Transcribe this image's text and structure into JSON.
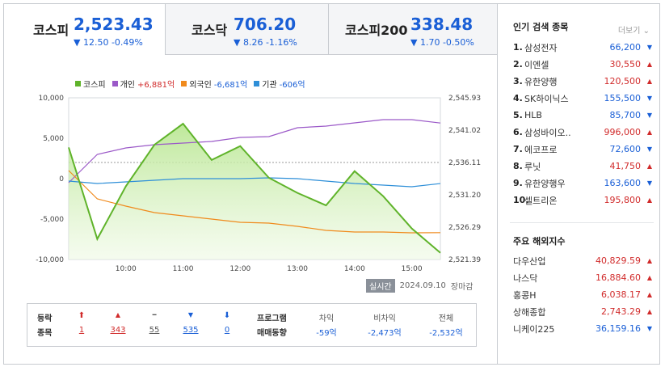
{
  "tabs": [
    {
      "name": "코스피",
      "value": "2,523.43",
      "change": "▼ 12.50 -0.49%"
    },
    {
      "name": "코스닥",
      "value": "706.20",
      "change": "▼ 8.26 -1.16%"
    },
    {
      "name": "코스피200",
      "value": "338.48",
      "change": "▼ 1.70 -0.50%"
    }
  ],
  "legend": {
    "kospi": "코스피",
    "individual_label": "개인",
    "individual_value": "+6,881억",
    "foreign_label": "외국인",
    "foreign_value": "-6,681억",
    "inst_label": "기관",
    "inst_value": "-606억"
  },
  "colors": {
    "kospi": "#5fb32a",
    "individual": "#9b59c8",
    "foreign": "#f08a1c",
    "inst": "#2e8fd8",
    "up": "#d12b2b",
    "down": "#1a5fd6"
  },
  "chart_data": {
    "type": "line",
    "title": "",
    "x": [
      "09:00",
      "09:30",
      "10:00",
      "10:30",
      "11:00",
      "11:30",
      "12:00",
      "12:30",
      "13:00",
      "13:30",
      "14:00",
      "14:30",
      "15:00",
      "15:30"
    ],
    "xticks": [
      "10:00",
      "11:00",
      "12:00",
      "13:00",
      "14:00",
      "15:00"
    ],
    "left_axis": {
      "ticks": [
        "10,000",
        "5,000",
        "0",
        "-5,000",
        "-10,000"
      ],
      "ylim": [
        -10000,
        10000
      ]
    },
    "right_axis": {
      "ticks": [
        "2,545.93",
        "2,541.02",
        "2,536.11",
        "2,531.20",
        "2,526.29",
        "2,521.39"
      ],
      "ylim": [
        2521.39,
        2545.93
      ]
    },
    "series": [
      {
        "name": "코스피",
        "axis": "right",
        "values": [
          2538.4,
          2524.5,
          2532.5,
          2538.8,
          2542.0,
          2536.5,
          2538.6,
          2533.8,
          2531.5,
          2529.6,
          2534.8,
          2531.0,
          2526.1,
          2522.4
        ]
      },
      {
        "name": "개인",
        "axis": "left",
        "values": [
          -500,
          3000,
          3800,
          4200,
          4400,
          4600,
          5100,
          5200,
          6300,
          6500,
          6900,
          7300,
          7300,
          6881
        ]
      },
      {
        "name": "외국인",
        "axis": "left",
        "values": [
          1000,
          -2500,
          -3400,
          -4200,
          -4600,
          -5000,
          -5400,
          -5500,
          -5900,
          -6400,
          -6600,
          -6600,
          -6700,
          -6681
        ]
      },
      {
        "name": "기관",
        "axis": "left",
        "values": [
          -300,
          -600,
          -400,
          -200,
          0,
          0,
          0,
          100,
          0,
          -300,
          -600,
          -800,
          -1000,
          -606
        ]
      }
    ]
  },
  "stamp": {
    "badge": "실시간",
    "date": "2024.09.10",
    "status": "장마감"
  },
  "breadth": {
    "label1": "등락",
    "label2": "종목",
    "items": [
      {
        "symbol": "⬆",
        "count": "1"
      },
      {
        "symbol": "▲",
        "count": "343"
      },
      {
        "symbol": "━",
        "count": "55"
      },
      {
        "symbol": "▼",
        "count": "535"
      },
      {
        "symbol": "⬇",
        "count": "0"
      }
    ]
  },
  "program": {
    "label1": "프로그램",
    "label2": "매매동향",
    "arb_label": "차익",
    "arb_value": "-59억",
    "nonarb_label": "비차익",
    "nonarb_value": "-2,473억",
    "total_label": "전체",
    "total_value": "-2,532억"
  },
  "popular": {
    "title": "인기 검색 종목",
    "more": "더보기",
    "items": [
      {
        "rank": "1.",
        "name": "삼성전자",
        "price": "66,200",
        "dir": "▼"
      },
      {
        "rank": "2.",
        "name": "이엔셀",
        "price": "30,550",
        "dir": "▲"
      },
      {
        "rank": "3.",
        "name": "유한양행",
        "price": "120,500",
        "dir": "▲"
      },
      {
        "rank": "4.",
        "name": "SK하이닉스",
        "price": "155,500",
        "dir": "▼"
      },
      {
        "rank": "5.",
        "name": "HLB",
        "price": "85,700",
        "dir": "▼"
      },
      {
        "rank": "6.",
        "name": "삼성바이오..",
        "price": "996,000",
        "dir": "▲"
      },
      {
        "rank": "7.",
        "name": "에코프로",
        "price": "72,600",
        "dir": "▼"
      },
      {
        "rank": "8.",
        "name": "루닛",
        "price": "41,750",
        "dir": "▲"
      },
      {
        "rank": "9.",
        "name": "유한양행우",
        "price": "163,600",
        "dir": "▼"
      },
      {
        "rank": "10.",
        "name": "셀트리온",
        "price": "195,800",
        "dir": "▲"
      }
    ]
  },
  "overseas": {
    "title": "주요 해외지수",
    "items": [
      {
        "name": "다우산업",
        "value": "40,829.59",
        "dir": "▲"
      },
      {
        "name": "나스닥",
        "value": "16,884.60",
        "dir": "▲"
      },
      {
        "name": "홍콩H",
        "value": "6,038.17",
        "dir": "▲"
      },
      {
        "name": "상해종합",
        "value": "2,743.29",
        "dir": "▲"
      },
      {
        "name": "니케이225",
        "value": "36,159.16",
        "dir": "▼"
      }
    ]
  }
}
